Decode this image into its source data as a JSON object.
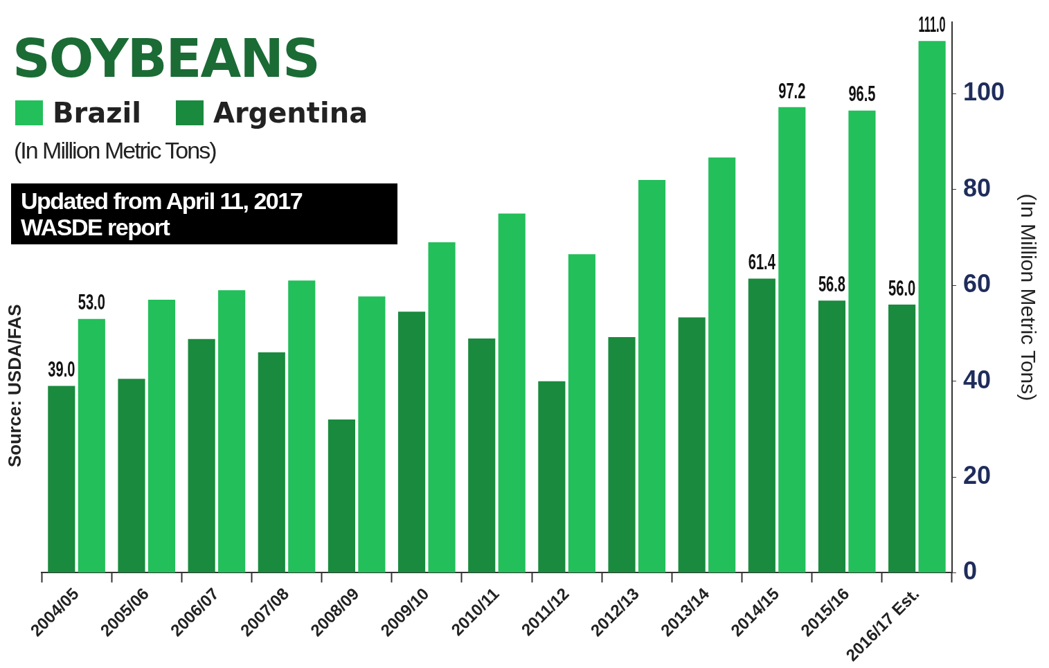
{
  "chart_data": {
    "type": "bar",
    "title": "SOYBEANS",
    "subtitle": "(In Million Metric Tons)",
    "ylabel": "(In Million Metric Tons)",
    "annotations": [
      "Updated from  April 11, 2017 WASDE report",
      "Source: USDA/FAS"
    ],
    "categories": [
      "2004/05",
      "2005/06",
      "2006/07",
      "2007/08",
      "2008/09",
      "2009/10",
      "2010/11",
      "2011/12",
      "2012/13",
      "2013/14",
      "2014/15",
      "2015/16",
      "2016/17 Est."
    ],
    "series": [
      {
        "name": "Brazil",
        "color": "#22bf5a",
        "values": [
          53.0,
          57,
          59,
          61,
          57.7,
          69,
          75,
          66.5,
          82,
          86.7,
          97.2,
          96.5,
          111.0
        ],
        "value_labels": [
          "53.0",
          null,
          null,
          null,
          null,
          null,
          null,
          null,
          null,
          null,
          "97.2",
          "96.5",
          "111.0"
        ]
      },
      {
        "name": "Argentina",
        "color": "#1a8a3e",
        "values": [
          39.0,
          40.5,
          48.8,
          46,
          32,
          54.5,
          48.9,
          40,
          49.2,
          53.3,
          61.4,
          56.8,
          56.0
        ],
        "value_labels": [
          "39.0",
          null,
          null,
          null,
          null,
          null,
          null,
          null,
          null,
          null,
          "61.4",
          "56.8",
          "56.0"
        ]
      }
    ],
    "ylim": [
      0,
      115
    ],
    "yticks": [
      0,
      20,
      40,
      60,
      80,
      100
    ],
    "grid": false,
    "legend": "top left"
  }
}
